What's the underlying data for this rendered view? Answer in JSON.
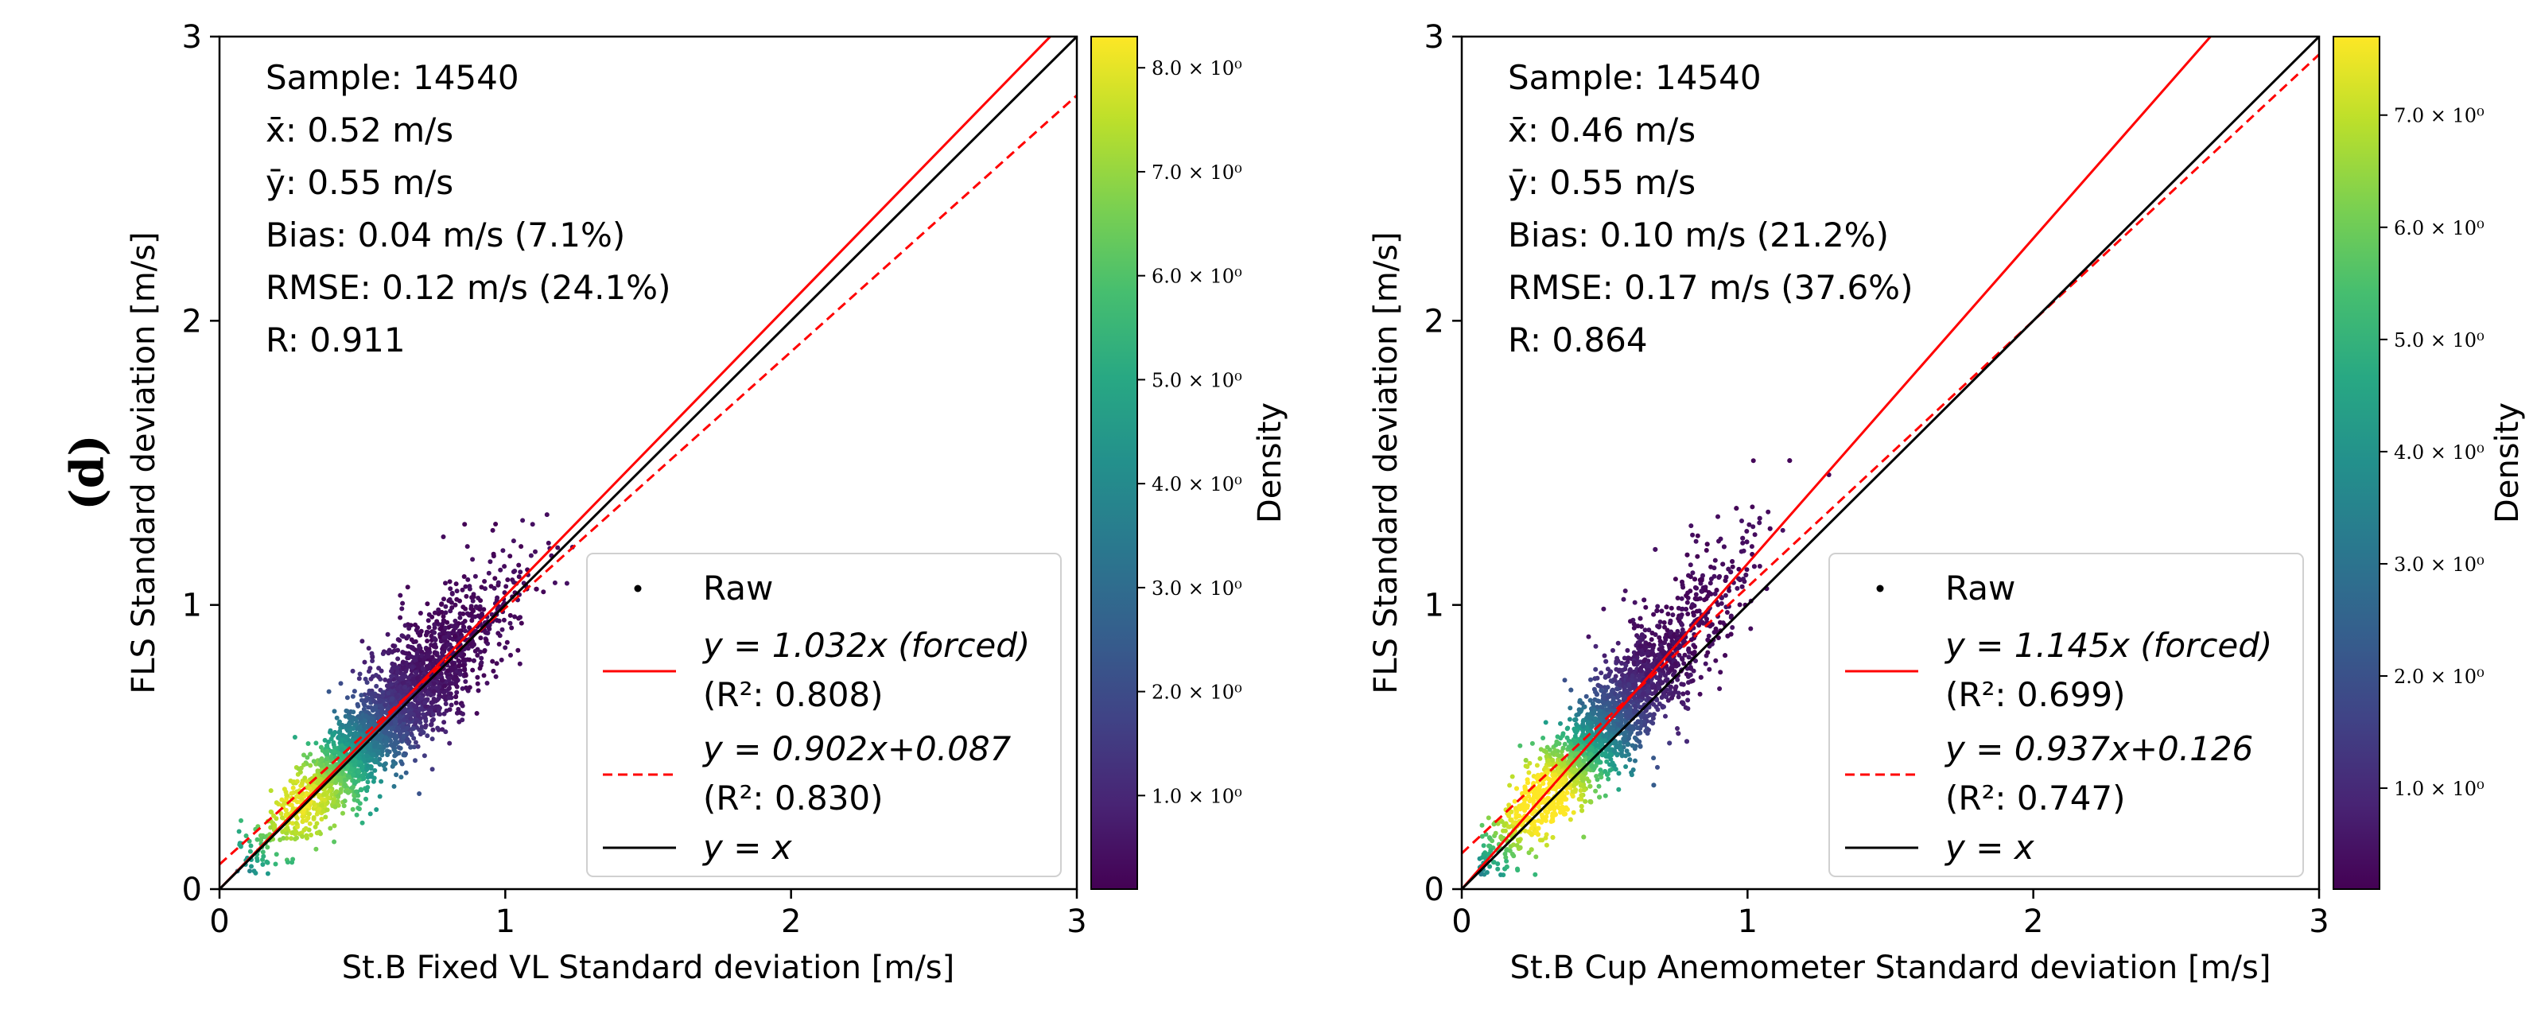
{
  "panel_label": "(d)",
  "colors": {
    "raw_low": "#440154",
    "fit_forced": "#ff0000",
    "fit_linear": "#ff0000",
    "identity": "#000000"
  },
  "chart_data": [
    {
      "type": "scatter",
      "subtype": "density-scatter",
      "xlabel": "St.B Fixed VL Standard deviation [m/s]",
      "ylabel": "FLS Standard deviation [m/s]",
      "xlim": [
        0,
        3
      ],
      "ylim": [
        0,
        3
      ],
      "xticks": [
        "0",
        "1",
        "2",
        "3"
      ],
      "yticks": [
        "0",
        "1",
        "2",
        "3"
      ],
      "stats": [
        "Sample: 14540",
        "x̄: 0.52 m/s",
        "ȳ: 0.55 m/s",
        "Bias: 0.04 m/s (7.1%)",
        "RMSE: 0.12 m/s (24.1%)",
        "R: 0.911"
      ],
      "cloud": {
        "mean_x": 0.52,
        "mean_y": 0.55,
        "slope": 1.0,
        "spread": 0.13
      },
      "lines": [
        {
          "name": "y = 1.032x (forced)",
          "r2": "(R²: 0.808)",
          "slope": 1.032,
          "intercept": 0,
          "style": "solid",
          "color": "#ff0000"
        },
        {
          "name": "y = 0.902x+0.087",
          "r2": "(R²: 0.830)",
          "slope": 0.902,
          "intercept": 0.087,
          "style": "dashed",
          "color": "#ff0000"
        },
        {
          "name": "y = x",
          "r2": "",
          "slope": 1,
          "intercept": 0,
          "style": "solid",
          "color": "#000000"
        }
      ],
      "legend": {
        "placement": "bottom-right",
        "entries": [
          "Raw",
          "y = 1.032x (forced)",
          "(R²: 0.808)",
          "y = 0.902x+0.087",
          "(R²: 0.830)",
          "y = x"
        ]
      },
      "colorbar": {
        "label": "Density",
        "range": [
          0.1,
          8.3
        ],
        "ticks": [
          {
            "value": 1,
            "label": "1.0 × 10⁰"
          },
          {
            "value": 2,
            "label": "2.0 × 10⁰"
          },
          {
            "value": 3,
            "label": "3.0 × 10⁰"
          },
          {
            "value": 4,
            "label": "4.0 × 10⁰"
          },
          {
            "value": 5,
            "label": "5.0 × 10⁰"
          },
          {
            "value": 6,
            "label": "6.0 × 10⁰"
          },
          {
            "value": 7,
            "label": "7.0 × 10⁰"
          },
          {
            "value": 8,
            "label": "8.0 × 10⁰"
          }
        ]
      }
    },
    {
      "type": "scatter",
      "subtype": "density-scatter",
      "xlabel": "St.B Cup Anemometer Standard deviation [m/s]",
      "ylabel": "FLS Standard deviation [m/s]",
      "xlim": [
        0,
        3
      ],
      "ylim": [
        0,
        3
      ],
      "xticks": [
        "0",
        "1",
        "2",
        "3"
      ],
      "yticks": [
        "0",
        "1",
        "2",
        "3"
      ],
      "stats": [
        "Sample: 14540",
        "x̄: 0.46 m/s",
        "ȳ: 0.55 m/s",
        "Bias: 0.10 m/s (21.2%)",
        "RMSE: 0.17 m/s (37.6%)",
        "R: 0.864"
      ],
      "cloud": {
        "mean_x": 0.46,
        "mean_y": 0.55,
        "slope": 1.1,
        "spread": 0.14
      },
      "lines": [
        {
          "name": "y = 1.145x (forced)",
          "r2": "(R²: 0.699)",
          "slope": 1.145,
          "intercept": 0,
          "style": "solid",
          "color": "#ff0000"
        },
        {
          "name": "y = 0.937x+0.126",
          "r2": "(R²: 0.747)",
          "slope": 0.937,
          "intercept": 0.126,
          "style": "dashed",
          "color": "#ff0000"
        },
        {
          "name": "y = x",
          "r2": "",
          "slope": 1,
          "intercept": 0,
          "style": "solid",
          "color": "#000000"
        }
      ],
      "legend": {
        "placement": "bottom-right",
        "entries": [
          "Raw",
          "y = 1.145x (forced)",
          "(R²: 0.699)",
          "y = 0.937x+0.126",
          "(R²: 0.747)",
          "y = x"
        ]
      },
      "colorbar": {
        "label": "Density",
        "range": [
          0.1,
          7.7
        ],
        "ticks": [
          {
            "value": 1,
            "label": "1.0 × 10⁰"
          },
          {
            "value": 2,
            "label": "2.0 × 10⁰"
          },
          {
            "value": 3,
            "label": "3.0 × 10⁰"
          },
          {
            "value": 4,
            "label": "4.0 × 10⁰"
          },
          {
            "value": 5,
            "label": "5.0 × 10⁰"
          },
          {
            "value": 6,
            "label": "6.0 × 10⁰"
          },
          {
            "value": 7,
            "label": "7.0 × 10⁰"
          }
        ]
      }
    }
  ]
}
